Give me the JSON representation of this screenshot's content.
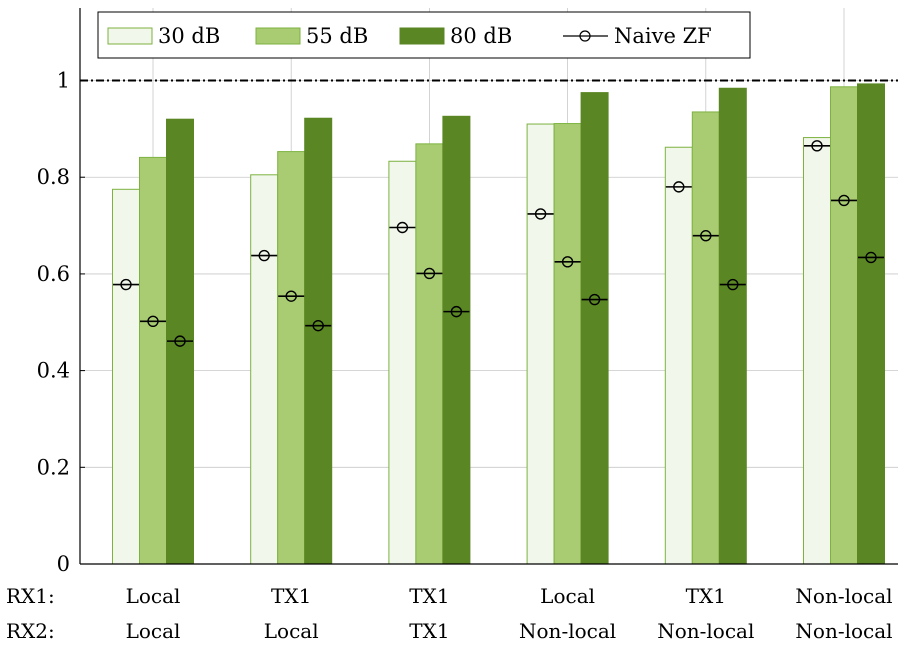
{
  "chart_data": {
    "type": "bar",
    "categories": [
      {
        "rx1": "Local",
        "rx2": "Local"
      },
      {
        "rx1": "TX1",
        "rx2": "Local"
      },
      {
        "rx1": "TX1",
        "rx2": "TX1"
      },
      {
        "rx1": "Local",
        "rx2": "Non-local"
      },
      {
        "rx1": "TX1",
        "rx2": "Non-local"
      },
      {
        "rx1": "Non-local",
        "rx2": "Non-local"
      }
    ],
    "row_labels": {
      "rx1": "RX1:",
      "rx2": "RX2:"
    },
    "series": [
      {
        "name": "30 dB",
        "color": "#f1f7ea",
        "stroke": "#7db240",
        "values": [
          0.775,
          0.805,
          0.833,
          0.91,
          0.862,
          0.882
        ]
      },
      {
        "name": "55 dB",
        "color": "#a9cc73",
        "stroke": "#7db240",
        "values": [
          0.841,
          0.853,
          0.869,
          0.911,
          0.935,
          0.987
        ]
      },
      {
        "name": "80 dB",
        "color": "#5a8623",
        "stroke": "#5a8623",
        "values": [
          0.92,
          0.922,
          0.926,
          0.975,
          0.984,
          0.993
        ]
      }
    ],
    "marker_series": {
      "name": "Naive ZF",
      "values": [
        [
          0.578,
          0.502,
          0.461
        ],
        [
          0.638,
          0.554,
          0.493
        ],
        [
          0.696,
          0.601,
          0.522
        ],
        [
          0.724,
          0.625,
          0.547
        ],
        [
          0.78,
          0.679,
          0.578
        ],
        [
          0.865,
          0.752,
          0.634
        ]
      ]
    },
    "reference_line": {
      "y": 1,
      "style": "dash-dot"
    },
    "yticks": [
      0,
      0.2,
      0.4,
      0.6,
      0.8,
      1
    ],
    "ytick_labels": [
      "0",
      "0.2",
      "0.4",
      "0.6",
      "0.8",
      "1"
    ],
    "ylim": [
      0,
      1.15
    ],
    "grid": true,
    "legend": "top"
  }
}
